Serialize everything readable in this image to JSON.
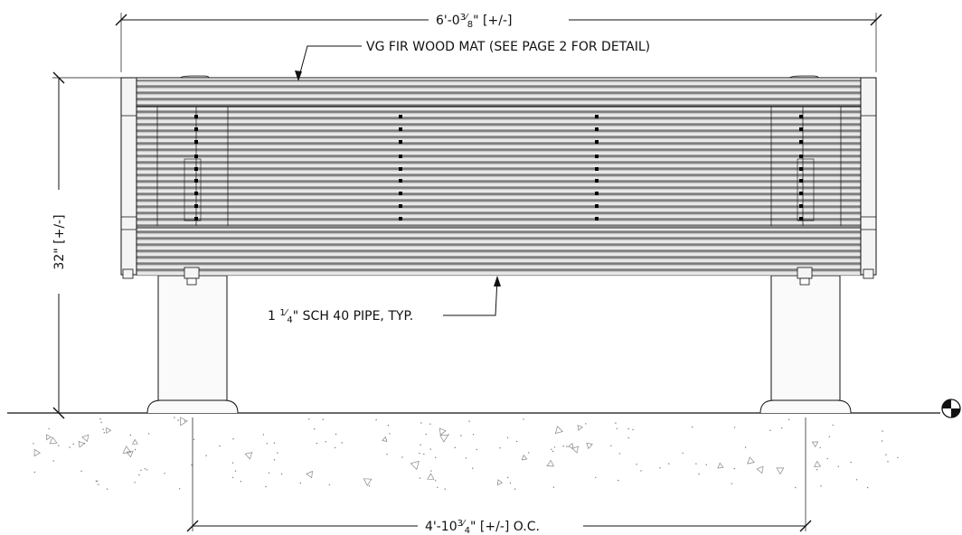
{
  "dimensions": {
    "overall_width": {
      "main": "6'-0",
      "num": "3",
      "den": "8",
      "suffix": "\" [+/-]"
    },
    "height": {
      "text": "32\" [+/-]"
    },
    "leg_spacing": {
      "main": "4'-10",
      "num": "3",
      "den": "4",
      "suffix": "\" [+/-] O.C."
    }
  },
  "callouts": {
    "wood_mat": "VG FIR WOOD MAT (SEE PAGE 2 FOR DETAIL)",
    "pipe": {
      "main": "1 ",
      "num": "1",
      "den": "4",
      "suffix": "\" SCH 40 PIPE, TYP."
    }
  },
  "symbols": {
    "datum": "section-datum-icon"
  }
}
